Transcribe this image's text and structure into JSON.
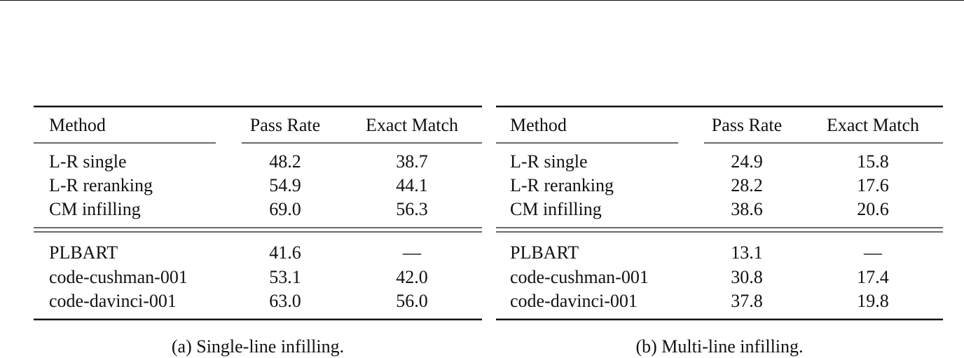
{
  "tables": [
    {
      "header": [
        "Method",
        "Pass Rate",
        "Exact Match"
      ],
      "groups": [
        [
          [
            "L-R single",
            "48.2",
            "38.7"
          ],
          [
            "L-R reranking",
            "54.9",
            "44.1"
          ],
          [
            "CM infilling",
            "69.0",
            "56.3"
          ]
        ],
        [
          [
            "PLBART",
            "41.6",
            "—"
          ],
          [
            "code-cushman-001",
            "53.1",
            "42.0"
          ],
          [
            "code-davinci-001",
            "63.0",
            "56.0"
          ]
        ]
      ],
      "caption": "(a) Single-line infilling."
    },
    {
      "header": [
        "Method",
        "Pass Rate",
        "Exact Match"
      ],
      "groups": [
        [
          [
            "L-R single",
            "24.9",
            "15.8"
          ],
          [
            "L-R reranking",
            "28.2",
            "17.6"
          ],
          [
            "CM infilling",
            "38.6",
            "20.6"
          ]
        ],
        [
          [
            "PLBART",
            "13.1",
            "—"
          ],
          [
            "code-cushman-001",
            "30.8",
            "17.4"
          ],
          [
            "code-davinci-001",
            "37.8",
            "19.8"
          ]
        ]
      ],
      "caption": "(b) Multi-line infilling."
    }
  ]
}
